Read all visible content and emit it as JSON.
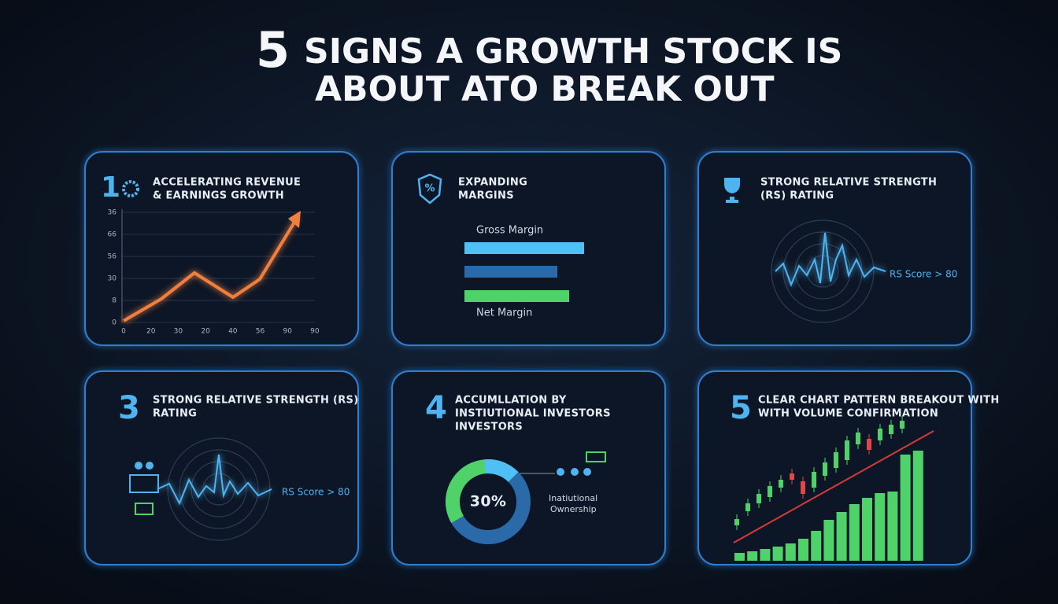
{
  "title": {
    "number": "5",
    "line1": "SIGNS A GROWTH STOCK IS",
    "line2": "ABOUT ATO BREAK OUT"
  },
  "panels": [
    {
      "badge": "1",
      "title": [
        "ACCELERATING REVENUE",
        "& EARNINGS GROWTH"
      ],
      "y_labels": [
        "36",
        "66",
        "56",
        "30",
        "8",
        "0"
      ],
      "x_labels": [
        "0",
        "20",
        "30",
        "20",
        "40",
        "56",
        "90",
        "90"
      ]
    },
    {
      "title": [
        "EXPANDING",
        "MARGINS"
      ],
      "labels": [
        "Gross Margin",
        "Net Margin"
      ]
    },
    {
      "title": [
        "STRONG RELATIVE STRENGTH",
        "(RS) RATING"
      ],
      "note": "RS Score > 80"
    },
    {
      "badge": "3",
      "title": [
        "STRONG RELATIVE STRENGTH (RS)",
        "RATING"
      ],
      "note": "RS Score > 80"
    },
    {
      "badge": "4",
      "title": [
        "ACCUMLLATION BY",
        "INSTIUTIONAL INVESTORS",
        "INVESTORS"
      ],
      "center": "30%",
      "caption": [
        "Inatiutional",
        "Ownership"
      ]
    },
    {
      "badge": "5",
      "title": [
        "CLEAR CHART PATTERN BREAKOUT WITH",
        "WITH VOLUME CONFIRMATION"
      ]
    }
  ]
}
